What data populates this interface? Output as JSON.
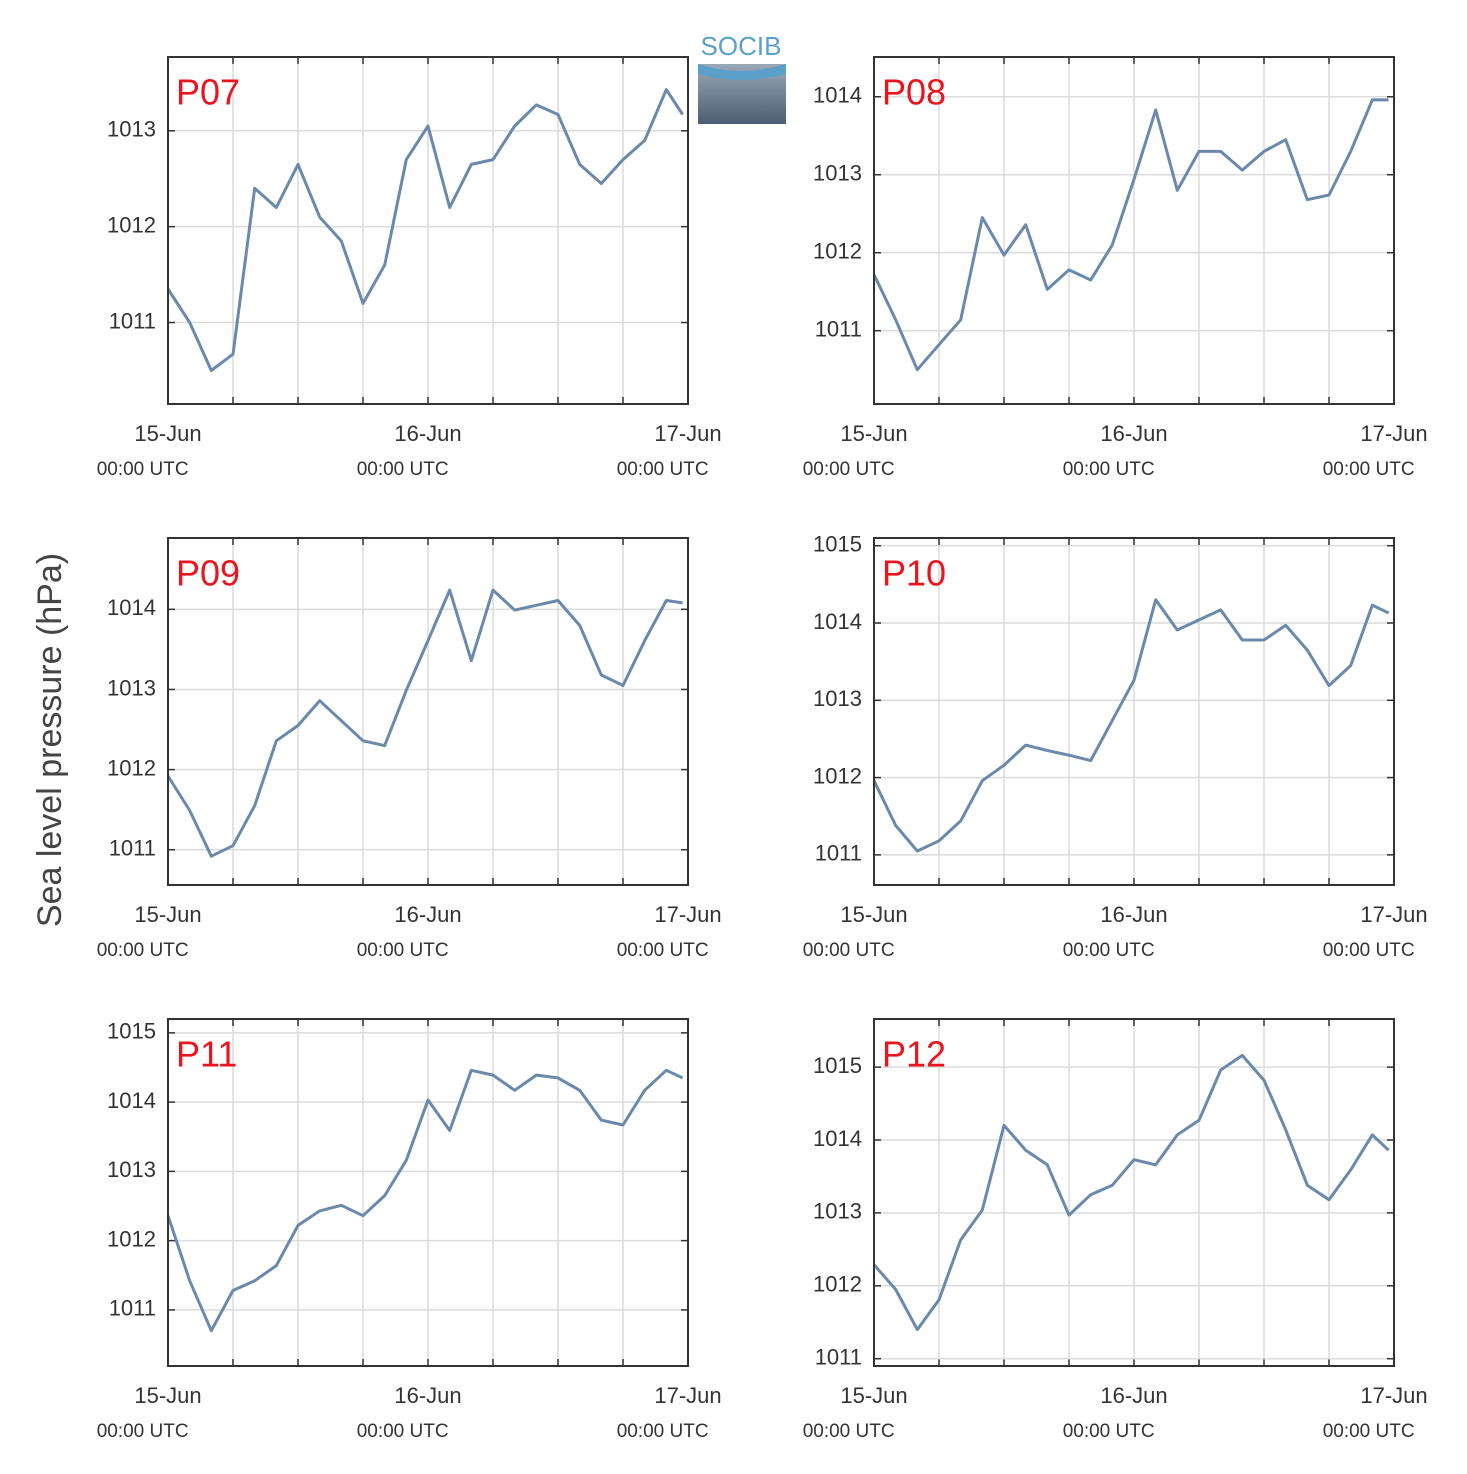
{
  "ylabel": "Sea level pressure (hPa)",
  "logo": "SOCIB",
  "chart_data": [
    {
      "type": "line",
      "title": "P07",
      "color": "#6a89ab",
      "grid": true,
      "x": [
        0,
        2,
        4,
        6,
        8,
        10,
        12,
        14,
        16,
        18,
        20,
        22,
        24,
        26,
        28,
        30,
        32,
        34,
        36,
        38,
        40,
        42,
        44,
        46,
        47.5
      ],
      "values": [
        1011.35,
        1011.0,
        1010.5,
        1010.67,
        1012.4,
        1012.2,
        1012.65,
        1012.1,
        1011.85,
        1011.2,
        1011.6,
        1012.7,
        1013.05,
        1012.2,
        1012.65,
        1012.7,
        1013.05,
        1013.27,
        1013.17,
        1012.65,
        1012.45,
        1012.7,
        1012.9,
        1013.43,
        1013.17
      ],
      "xlim": [
        0,
        48
      ],
      "ylim": [
        1010.15,
        1013.77
      ],
      "yticks": [
        1011,
        1012,
        1013
      ],
      "xticks": [
        {
          "value": 0,
          "label": "15-Jun 00:00 UTC"
        },
        {
          "value": 6,
          "label": null
        },
        {
          "value": 12,
          "label": null
        },
        {
          "value": 18,
          "label": null
        },
        {
          "value": 24,
          "label": "16-Jun 00:00 UTC"
        },
        {
          "value": 30,
          "label": null
        },
        {
          "value": 36,
          "label": null
        },
        {
          "value": 42,
          "label": null
        },
        {
          "value": 48,
          "label": "17-Jun 00:00 UTC"
        }
      ]
    },
    {
      "type": "line",
      "title": "P08",
      "color": "#6a89ab",
      "grid": true,
      "x": [
        0,
        2,
        4,
        6,
        8,
        10,
        12,
        14,
        16,
        18,
        20,
        22,
        24,
        26,
        28,
        30,
        32,
        34,
        36,
        38,
        40,
        42,
        44,
        46,
        47.5
      ],
      "values": [
        1011.72,
        1011.14,
        1010.5,
        1010.82,
        1011.14,
        1012.45,
        1011.97,
        1012.36,
        1011.53,
        1011.78,
        1011.65,
        1012.1,
        1012.94,
        1013.83,
        1012.8,
        1013.3,
        1013.3,
        1013.06,
        1013.3,
        1013.45,
        1012.68,
        1012.74,
        1013.3,
        1013.96,
        1013.96
      ],
      "xlim": [
        0,
        48
      ],
      "ylim": [
        1010.06,
        1014.51
      ],
      "yticks": [
        1011,
        1012,
        1013,
        1014
      ],
      "xticks": [
        {
          "value": 0,
          "label": "15-Jun 00:00 UTC"
        },
        {
          "value": 6,
          "label": null
        },
        {
          "value": 12,
          "label": null
        },
        {
          "value": 18,
          "label": null
        },
        {
          "value": 24,
          "label": "16-Jun 00:00 UTC"
        },
        {
          "value": 30,
          "label": null
        },
        {
          "value": 36,
          "label": null
        },
        {
          "value": 42,
          "label": null
        },
        {
          "value": 48,
          "label": "17-Jun 00:00 UTC"
        }
      ]
    },
    {
      "type": "line",
      "title": "P09",
      "color": "#6a89ab",
      "grid": true,
      "x": [
        0,
        2,
        4,
        6,
        8,
        10,
        12,
        14,
        16,
        18,
        20,
        22,
        24,
        26,
        28,
        30,
        32,
        34,
        36,
        38,
        40,
        42,
        44,
        46,
        47.5
      ],
      "values": [
        1011.92,
        1011.49,
        1010.92,
        1011.05,
        1011.55,
        1012.36,
        1012.55,
        1012.86,
        1012.61,
        1012.36,
        1012.3,
        1012.99,
        1013.61,
        1014.24,
        1013.36,
        1014.24,
        1013.99,
        1014.05,
        1014.11,
        1013.8,
        1013.18,
        1013.05,
        1013.61,
        1014.11,
        1014.08
      ],
      "xlim": [
        0,
        48
      ],
      "ylim": [
        1010.56,
        1014.89
      ],
      "yticks": [
        1011,
        1012,
        1013,
        1014
      ],
      "xticks": [
        {
          "value": 0,
          "label": "15-Jun 00:00 UTC"
        },
        {
          "value": 6,
          "label": null
        },
        {
          "value": 12,
          "label": null
        },
        {
          "value": 18,
          "label": null
        },
        {
          "value": 24,
          "label": "16-Jun 00:00 UTC"
        },
        {
          "value": 30,
          "label": null
        },
        {
          "value": 36,
          "label": null
        },
        {
          "value": 42,
          "label": null
        },
        {
          "value": 48,
          "label": "17-Jun 00:00 UTC"
        }
      ]
    },
    {
      "type": "line",
      "title": "P10",
      "color": "#6a89ab",
      "grid": true,
      "x": [
        0,
        2,
        4,
        6,
        8,
        10,
        12,
        14,
        16,
        18,
        20,
        22,
        24,
        26,
        28,
        30,
        32,
        34,
        36,
        38,
        40,
        42,
        44,
        46,
        47.5
      ],
      "values": [
        1011.96,
        1011.38,
        1011.05,
        1011.18,
        1011.44,
        1011.96,
        1012.16,
        1012.42,
        1012.35,
        1012.29,
        1012.22,
        1012.74,
        1013.26,
        1014.3,
        1013.91,
        1014.04,
        1014.17,
        1013.78,
        1013.78,
        1013.97,
        1013.65,
        1013.19,
        1013.45,
        1014.23,
        1014.13
      ],
      "xlim": [
        0,
        48
      ],
      "ylim": [
        1010.61,
        1015.1
      ],
      "yticks": [
        1011,
        1012,
        1013,
        1014,
        1015
      ],
      "xticks": [
        {
          "value": 0,
          "label": "15-Jun 00:00 UTC"
        },
        {
          "value": 6,
          "label": null
        },
        {
          "value": 12,
          "label": null
        },
        {
          "value": 18,
          "label": null
        },
        {
          "value": 24,
          "label": "16-Jun 00:00 UTC"
        },
        {
          "value": 30,
          "label": null
        },
        {
          "value": 36,
          "label": null
        },
        {
          "value": 42,
          "label": null
        },
        {
          "value": 48,
          "label": "17-Jun 00:00 UTC"
        }
      ]
    },
    {
      "type": "line",
      "title": "P11",
      "color": "#6a89ab",
      "grid": true,
      "x": [
        0,
        2,
        4,
        6,
        8,
        10,
        12,
        14,
        16,
        18,
        20,
        22,
        24,
        26,
        28,
        30,
        32,
        34,
        36,
        38,
        40,
        42,
        44,
        46,
        47.5
      ],
      "values": [
        1012.36,
        1011.42,
        1010.7,
        1011.28,
        1011.42,
        1011.64,
        1012.22,
        1012.43,
        1012.51,
        1012.36,
        1012.65,
        1013.16,
        1014.03,
        1013.59,
        1014.46,
        1014.39,
        1014.17,
        1014.39,
        1014.35,
        1014.17,
        1013.74,
        1013.67,
        1014.17,
        1014.46,
        1014.35
      ],
      "xlim": [
        0,
        48
      ],
      "ylim": [
        1010.19,
        1015.2
      ],
      "yticks": [
        1011,
        1012,
        1013,
        1014,
        1015
      ],
      "xticks": [
        {
          "value": 0,
          "label": "15-Jun 00:00 UTC"
        },
        {
          "value": 6,
          "label": null
        },
        {
          "value": 12,
          "label": null
        },
        {
          "value": 18,
          "label": null
        },
        {
          "value": 24,
          "label": "16-Jun 00:00 UTC"
        },
        {
          "value": 30,
          "label": null
        },
        {
          "value": 36,
          "label": null
        },
        {
          "value": 42,
          "label": null
        },
        {
          "value": 48,
          "label": "17-Jun 00:00 UTC"
        }
      ]
    },
    {
      "type": "line",
      "title": "P12",
      "color": "#6a89ab",
      "grid": true,
      "x": [
        0,
        2,
        4,
        6,
        8,
        10,
        12,
        14,
        16,
        18,
        20,
        22,
        24,
        26,
        28,
        30,
        32,
        34,
        36,
        38,
        40,
        42,
        44,
        46,
        47.5
      ],
      "values": [
        1012.29,
        1011.95,
        1011.4,
        1011.81,
        1012.63,
        1013.04,
        1014.2,
        1013.86,
        1013.66,
        1012.97,
        1013.25,
        1013.38,
        1013.73,
        1013.66,
        1014.07,
        1014.27,
        1014.96,
        1015.16,
        1014.82,
        1014.14,
        1013.38,
        1013.18,
        1013.59,
        1014.07,
        1013.86
      ],
      "xlim": [
        0,
        48
      ],
      "ylim": [
        1010.9,
        1015.66
      ],
      "yticks": [
        1011,
        1012,
        1013,
        1014,
        1015
      ],
      "xticks": [
        {
          "value": 0,
          "label": "15-Jun 00:00 UTC"
        },
        {
          "value": 6,
          "label": null
        },
        {
          "value": 12,
          "label": null
        },
        {
          "value": 18,
          "label": null
        },
        {
          "value": 24,
          "label": "16-Jun 00:00 UTC"
        },
        {
          "value": 30,
          "label": null
        },
        {
          "value": 36,
          "label": null
        },
        {
          "value": 42,
          "label": null
        },
        {
          "value": 48,
          "label": "17-Jun 00:00 UTC"
        }
      ]
    }
  ]
}
